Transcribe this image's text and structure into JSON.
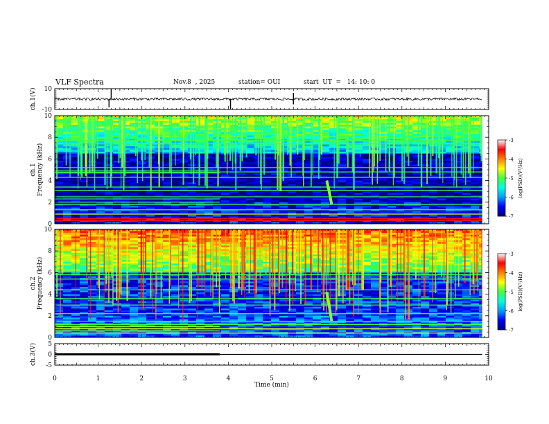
{
  "header": {
    "title": "VLF Spectra",
    "date": "Nov.8  , 2025",
    "station": "station= OUI",
    "start": "start  UT  =   14: 10: 0"
  },
  "chart_data": [
    {
      "type": "line",
      "id": "ch1",
      "ylabel": "ch.1(V)",
      "ylim": [
        -10,
        10
      ],
      "ytick_labels": [
        "10",
        "-10"
      ],
      "baseline_value": 0,
      "noise_amplitude": 1.2,
      "spikes": [
        [
          1.3,
          9.5
        ],
        [
          1.25,
          -8
        ],
        [
          4.05,
          -9.5
        ],
        [
          5.5,
          6
        ],
        [
          5.5,
          -5
        ]
      ]
    },
    {
      "type": "heatmap",
      "id": "ch1-spectrogram",
      "ylabel_top": "ch.1",
      "ylabel": "Frequency (kHz)",
      "ylim": [
        0,
        10
      ],
      "ytick_labels": [
        "0",
        "2",
        "4",
        "6",
        "8",
        "10"
      ],
      "color_scale": {
        "label": "log(PSD)(V²/Hz)",
        "min": -7,
        "max": -3,
        "tick_labels": [
          "-3",
          "-4",
          "-5",
          "-6",
          "-7"
        ],
        "colors": [
          "#000080",
          "#0000ff",
          "#00a0ff",
          "#00ffe0",
          "#40ff40",
          "#ffff00",
          "#ff8000",
          "#ff0000",
          "#ffffff"
        ]
      },
      "noise_lines_khz": [
        0.3,
        0.5,
        0.9,
        1.3,
        1.8,
        2.5,
        3.1,
        3.4,
        4.3,
        4.8,
        5.2,
        7.4,
        7.7
      ],
      "emission_band_khz": [
        6.5,
        10
      ],
      "whistler": {
        "time_min": 6.3,
        "freq_khz": [
          1.8,
          4.0
        ]
      }
    },
    {
      "type": "heatmap",
      "id": "ch2-spectrogram",
      "ylabel_top": "ch.2",
      "ylabel": "Frequency (kHz)",
      "ylim": [
        0,
        10
      ],
      "ytick_labels": [
        "0",
        "2",
        "4",
        "6",
        "8",
        "10"
      ],
      "color_scale": {
        "label": "log(PSD)(V²/Hz)",
        "min": -7,
        "max": -3,
        "tick_labels": [
          "-3",
          "-4",
          "-5",
          "-6",
          "-7"
        ],
        "colors": [
          "#000080",
          "#0000ff",
          "#00a0ff",
          "#00ffe0",
          "#40ff40",
          "#ffff00",
          "#ff8000",
          "#ff0000",
          "#ffffff"
        ]
      },
      "noise_lines_khz": [
        0.4,
        0.8,
        1.2,
        1.5,
        2.2,
        3.0,
        3.6,
        4.4,
        5.4,
        5.8
      ],
      "emission_band_khz": [
        6.0,
        10
      ],
      "whistler": {
        "time_min": 6.3,
        "freq_khz": [
          1.5,
          4.2
        ]
      }
    },
    {
      "type": "line",
      "id": "ch3",
      "ylabel": "ch.3(V)",
      "ylim": [
        -5,
        5
      ],
      "ytick_labels": [
        "5",
        "0",
        "-5"
      ],
      "segments": [
        {
          "x": [
            0,
            3.8
          ],
          "y": 0,
          "weight": "heavy"
        },
        {
          "x": [
            3.8,
            9.85
          ],
          "y": 0,
          "weight": "light"
        }
      ]
    }
  ],
  "time_axis": {
    "xlabel": "Time (min)",
    "xlim": [
      0,
      10
    ],
    "tick_labels": [
      "0",
      "1",
      "2",
      "3",
      "4",
      "5",
      "6",
      "7",
      "8",
      "9",
      "10"
    ],
    "data_end": 9.85
  }
}
